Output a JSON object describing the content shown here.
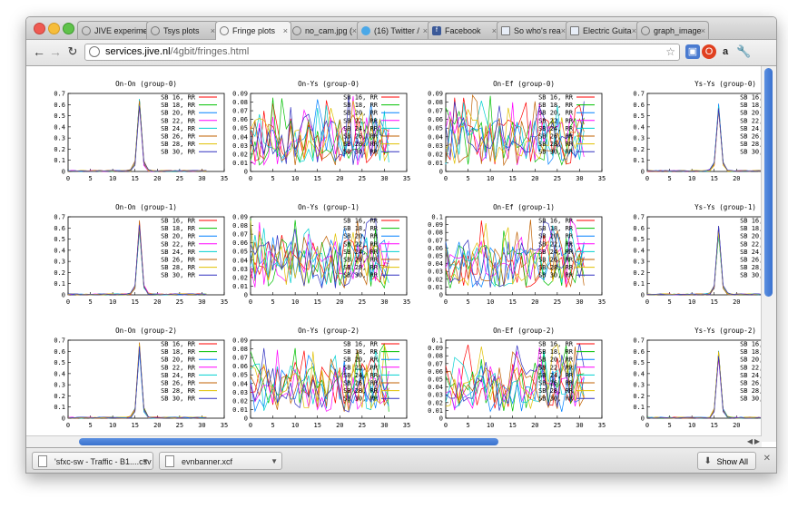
{
  "window": {
    "tabs": [
      {
        "label": "JIVE experime",
        "icon": "globe-icon"
      },
      {
        "label": "Tsys plots",
        "icon": "globe-icon"
      },
      {
        "label": "Fringe plots",
        "icon": "globe-icon",
        "active": true
      },
      {
        "label": "no_cam.jpg (",
        "icon": "globe-icon"
      },
      {
        "label": "(16) Twitter /",
        "icon": "twitter-icon"
      },
      {
        "label": "Facebook",
        "icon": "facebook-icon"
      },
      {
        "label": "So who's rea",
        "icon": "document-icon"
      },
      {
        "label": "Electric Guita",
        "icon": "document-icon"
      },
      {
        "label": "graph_image",
        "icon": "globe-icon"
      }
    ]
  },
  "toolbar": {
    "back_icon": "arrow-left-icon",
    "forward_icon": "arrow-right-icon",
    "reload_icon": "reload-icon",
    "url_host": "services.jive.nl",
    "url_path": "/4gbit/fringes.html",
    "star_icon": "star-icon",
    "wrench_icon": "wrench-icon"
  },
  "legend": [
    "SB 16, RR",
    "SB 18, RR",
    "SB 20, RR",
    "SB 22, RR",
    "SB 24, RR",
    "SB 26, RR",
    "SB 28, RR",
    "SB 30, RR"
  ],
  "series_colors": [
    "#ff0000",
    "#00c000",
    "#0080ff",
    "#ff00ff",
    "#00d0d0",
    "#c06000",
    "#e0c000",
    "#3030c0"
  ],
  "chart_data": [
    {
      "type": "line",
      "title": "On-On (group-0)",
      "xlim": [
        0,
        35
      ],
      "ylim": [
        0,
        0.7
      ],
      "yticks": [
        "0",
        "0.1",
        "0.2",
        "0.3",
        "0.4",
        "0.5",
        "0.6",
        "0.7"
      ],
      "xticks": [
        "0",
        "5",
        "10",
        "15",
        "20",
        "25",
        "30",
        "35"
      ],
      "peak": {
        "x": 16,
        "y": 0.68
      }
    },
    {
      "type": "line",
      "title": "On-Ys (group-0)",
      "xlim": [
        0,
        35
      ],
      "ylim": [
        0,
        0.09
      ],
      "yticks": [
        "0",
        "0.01",
        "0.02",
        "0.03",
        "0.04",
        "0.05",
        "0.06",
        "0.07",
        "0.08",
        "0.09"
      ],
      "xticks": [
        "0",
        "5",
        "10",
        "15",
        "20",
        "25",
        "30",
        "35"
      ]
    },
    {
      "type": "line",
      "title": "On-Ef (group-0)",
      "xlim": [
        0,
        35
      ],
      "ylim": [
        0,
        0.09
      ],
      "yticks": [
        "0",
        "0.01",
        "0.02",
        "0.03",
        "0.04",
        "0.05",
        "0.06",
        "0.07",
        "0.08",
        "0.09"
      ],
      "xticks": [
        "0",
        "5",
        "10",
        "15",
        "20",
        "25",
        "30",
        "35"
      ]
    },
    {
      "type": "line",
      "title": "Ys-Ys (group-0)",
      "xlim": [
        0,
        35
      ],
      "ylim": [
        0,
        0.7
      ],
      "yticks": [
        "0",
        "0.1",
        "0.2",
        "0.3",
        "0.4",
        "0.5",
        "0.6",
        "0.7"
      ],
      "xticks": [
        "0",
        "5",
        "10",
        "15",
        "20"
      ],
      "peak": {
        "x": 16,
        "y": 0.62
      }
    },
    {
      "type": "line",
      "title": "On-On (group-1)",
      "xlim": [
        0,
        35
      ],
      "ylim": [
        0,
        0.7
      ],
      "yticks": [
        "0",
        "0.1",
        "0.2",
        "0.3",
        "0.4",
        "0.5",
        "0.6",
        "0.7"
      ],
      "xticks": [
        "0",
        "5",
        "10",
        "15",
        "20",
        "25",
        "30",
        "35"
      ],
      "peak": {
        "x": 16,
        "y": 0.68
      }
    },
    {
      "type": "line",
      "title": "On-Ys (group-1)",
      "xlim": [
        0,
        35
      ],
      "ylim": [
        0,
        0.09
      ],
      "yticks": [
        "0",
        "0.01",
        "0.02",
        "0.03",
        "0.04",
        "0.05",
        "0.06",
        "0.07",
        "0.08",
        "0.09"
      ],
      "xticks": [
        "0",
        "5",
        "10",
        "15",
        "20",
        "25",
        "30",
        "35"
      ]
    },
    {
      "type": "line",
      "title": "On-Ef (group-1)",
      "xlim": [
        0,
        35
      ],
      "ylim": [
        0,
        0.1
      ],
      "yticks": [
        "0",
        "0.01",
        "0.02",
        "0.03",
        "0.04",
        "0.05",
        "0.06",
        "0.07",
        "0.08",
        "0.09",
        "0.1"
      ],
      "xticks": [
        "0",
        "5",
        "10",
        "15",
        "20",
        "25",
        "30",
        "35"
      ]
    },
    {
      "type": "line",
      "title": "Ys-Ys (group-1)",
      "xlim": [
        0,
        35
      ],
      "ylim": [
        0,
        0.7
      ],
      "yticks": [
        "0",
        "0.1",
        "0.2",
        "0.3",
        "0.4",
        "0.5",
        "0.6",
        "0.7"
      ],
      "xticks": [
        "0",
        "5",
        "10",
        "15",
        "20"
      ],
      "peak": {
        "x": 16,
        "y": 0.62
      }
    },
    {
      "type": "line",
      "title": "On-On (group-2)",
      "xlim": [
        0,
        35
      ],
      "ylim": [
        0,
        0.7
      ],
      "yticks": [
        "0",
        "0.1",
        "0.2",
        "0.3",
        "0.4",
        "0.5",
        "0.6",
        "0.7"
      ],
      "xticks": [
        "0",
        "5",
        "10",
        "15",
        "20",
        "25",
        "30",
        "35"
      ],
      "peak": {
        "x": 16,
        "y": 0.68
      }
    },
    {
      "type": "line",
      "title": "On-Ys (group-2)",
      "xlim": [
        0,
        35
      ],
      "ylim": [
        0,
        0.09
      ],
      "yticks": [
        "0",
        "0.01",
        "0.02",
        "0.03",
        "0.04",
        "0.05",
        "0.06",
        "0.07",
        "0.08",
        "0.09"
      ],
      "xticks": [
        "0",
        "5",
        "10",
        "15",
        "20",
        "25",
        "30",
        "35"
      ]
    },
    {
      "type": "line",
      "title": "On-Ef (group-2)",
      "xlim": [
        0,
        35
      ],
      "ylim": [
        0,
        0.1
      ],
      "yticks": [
        "0",
        "0.01",
        "0.02",
        "0.03",
        "0.04",
        "0.05",
        "0.06",
        "0.07",
        "0.08",
        "0.09",
        "0.1"
      ],
      "xticks": [
        "0",
        "5",
        "10",
        "15",
        "20",
        "25",
        "30",
        "35"
      ]
    },
    {
      "type": "line",
      "title": "Ys-Ys (group-2)",
      "xlim": [
        0,
        35
      ],
      "ylim": [
        0,
        0.7
      ],
      "yticks": [
        "0",
        "0.1",
        "0.2",
        "0.3",
        "0.4",
        "0.5",
        "0.6",
        "0.7"
      ],
      "xticks": [
        "0",
        "5",
        "10",
        "15",
        "20"
      ],
      "peak": {
        "x": 16,
        "y": 0.62
      }
    }
  ],
  "downloads": {
    "items": [
      {
        "label": "'sfxc-sw - Traffic - B1....csv"
      },
      {
        "label": "evnbanner.xcf"
      }
    ],
    "show_all": "Show All"
  }
}
